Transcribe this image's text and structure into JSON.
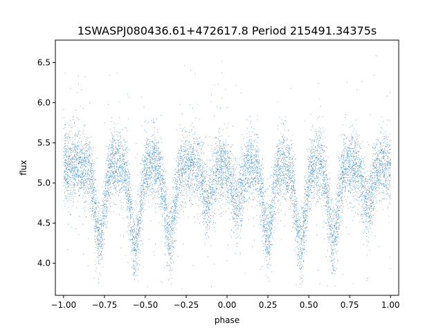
{
  "chart_data": {
    "type": "scatter",
    "title": "1SWASPJ080436.61+472617.8 Period 215491.34375s",
    "xlabel": "phase",
    "ylabel": "flux",
    "xlim": [
      -1.05,
      1.05
    ],
    "ylim": [
      3.6,
      6.78
    ],
    "x_ticks": [
      -1.0,
      -0.75,
      -0.5,
      -0.25,
      0.0,
      0.25,
      0.5,
      0.75,
      1.0
    ],
    "x_tick_labels": [
      "−1.00",
      "−0.75",
      "−0.50",
      "−0.25",
      "0.00",
      "0.25",
      "0.50",
      "0.75",
      "1.00"
    ],
    "y_ticks": [
      4.0,
      4.5,
      5.0,
      5.5,
      6.0,
      6.5
    ],
    "y_tick_labels": [
      "4.0",
      "4.5",
      "5.0",
      "5.5",
      "6.0",
      "6.5"
    ],
    "grid": false,
    "marker_color": "#1f77b4",
    "series": [
      {
        "x_range": [
          -1.0,
          1.0
        ],
        "pattern": "phase-folded light curve of an eclipsing binary, shown over two cycles; roughly constant baseline with periodic dips",
        "baseline_flux": 5.22,
        "scatter_sigma": 0.22,
        "dips": [
          {
            "center": -0.78,
            "min_flux": 4.3
          },
          {
            "center": -0.56,
            "min_flux": 4.2
          },
          {
            "center": -0.35,
            "min_flux": 4.3
          },
          {
            "center": -0.12,
            "min_flux": 4.75
          },
          {
            "center": 0.06,
            "min_flux": 4.75
          },
          {
            "center": 0.25,
            "min_flux": 4.3
          },
          {
            "center": 0.45,
            "min_flux": 4.2
          },
          {
            "center": 0.65,
            "min_flux": 4.3
          },
          {
            "center": 0.86,
            "min_flux": 4.75
          }
        ]
      }
    ]
  }
}
